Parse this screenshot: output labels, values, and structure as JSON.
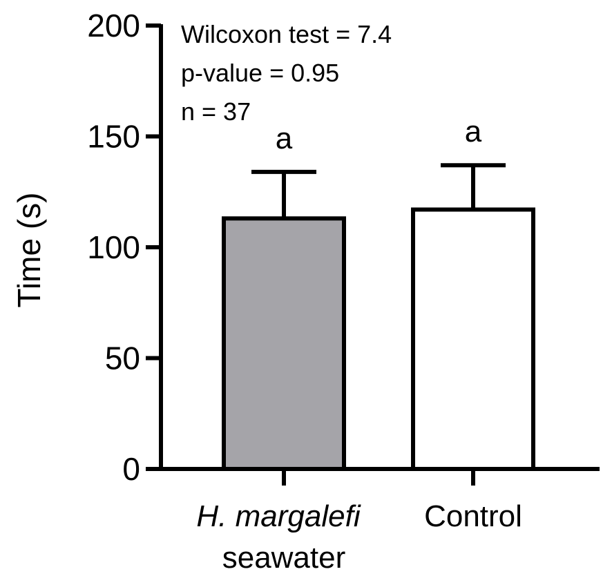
{
  "chart_data": {
    "type": "bar",
    "categories": [
      {
        "line1": "H. margalefi",
        "line2": "seawater",
        "italic_line1": true
      },
      {
        "line1": "Control",
        "line2": "",
        "italic_line1": false
      }
    ],
    "values": [
      113,
      117
    ],
    "errors": [
      21,
      20
    ],
    "bar_colors": [
      "#a5a4a9",
      "#ffffff"
    ],
    "significance_letters": [
      "a",
      "a"
    ],
    "ylabel": "Time (s)",
    "ylim": [
      0,
      200
    ],
    "yticks": [
      "0",
      "50",
      "100",
      "150",
      "200"
    ],
    "annotations": [
      "Wilcoxon test = 7.4",
      "p-value = 0.95",
      "n = 37"
    ],
    "grid": false,
    "legend": "none"
  }
}
